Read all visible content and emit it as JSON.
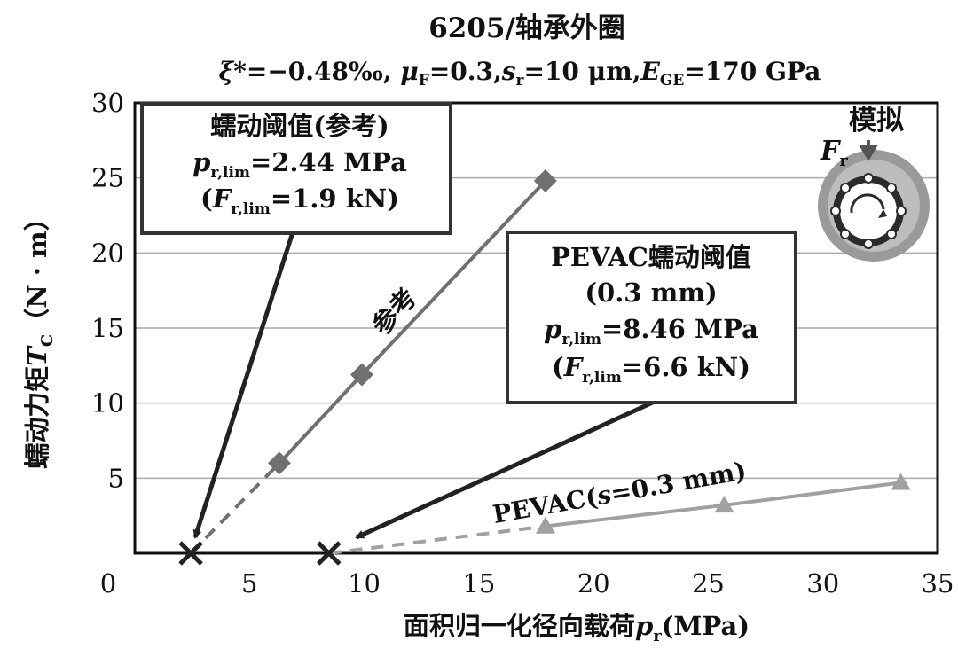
{
  "chart_data": {
    "type": "line",
    "title": "6205/轴承外圈",
    "subtitle": {
      "xi": "ξ",
      "xi_rest": "*=−0.48‰, ",
      "mu": "μ",
      "mu_sub": "F",
      "mu_rest": "=0.3,",
      "s": "s",
      "s_sub": "r",
      "s_rest": "=10  μm,",
      "e": "E",
      "e_sub": "GE",
      "e_rest": "=170 GPa"
    },
    "xlabel": {
      "text": "面积归一化径向载荷",
      "var": "p",
      "sub": "r",
      "unit": "(MPa)"
    },
    "ylabel": {
      "text": "蠕动力矩",
      "var": "T",
      "sub": "C",
      "unit": "（N · m）"
    },
    "xlim": [
      0,
      35
    ],
    "ylim": [
      0,
      30
    ],
    "xticks": [
      0,
      5,
      10,
      15,
      20,
      25,
      30,
      35
    ],
    "yticks": [
      5,
      10,
      15,
      20,
      25,
      30
    ],
    "grid": "horizontal",
    "series": [
      {
        "name": "参考",
        "color": "#707070",
        "marker": "diamond",
        "points": [
          [
            6.3,
            6.0
          ],
          [
            9.9,
            11.9
          ],
          [
            17.9,
            24.8
          ]
        ],
        "extrapolated_to": [
          2.44,
          0
        ]
      },
      {
        "name": "PEVAC(s=0.3 mm)",
        "color": "#a0a0a0",
        "marker": "triangle",
        "points": [
          [
            17.9,
            1.8
          ],
          [
            25.7,
            3.2
          ],
          [
            33.4,
            4.7
          ]
        ],
        "extrapolated_to": [
          8.46,
          0
        ]
      }
    ],
    "threshold_markers": [
      [
        2.44,
        0
      ],
      [
        8.46,
        0
      ]
    ],
    "annotations": {
      "ref_box": {
        "line1": "蠕动阈值(参考)",
        "line2": {
          "var": "p",
          "sub": "r,lim",
          "value": "=2.44 MPa"
        },
        "line3": {
          "open": "(",
          "var": "F",
          "sub": "r,lim",
          "value": "=1.9 kN)"
        }
      },
      "pevac_box": {
        "line1": "PEVAC蠕动阈值",
        "line2": "(0.3 mm)",
        "line3": {
          "var": "p",
          "sub": "r,lim",
          "value": "=8.46 MPa"
        },
        "line4": {
          "open": "(",
          "var": "F",
          "sub": "r,lim",
          "value": "=6.6 kN)"
        }
      },
      "ref_series_label": "参考",
      "pevac_series_label": {
        "pre": "PEVAC(",
        "var": "s",
        "post": "=0.3 mm)"
      },
      "sim_label": "模拟",
      "force_label": {
        "var": "F",
        "sub": "r"
      }
    }
  }
}
